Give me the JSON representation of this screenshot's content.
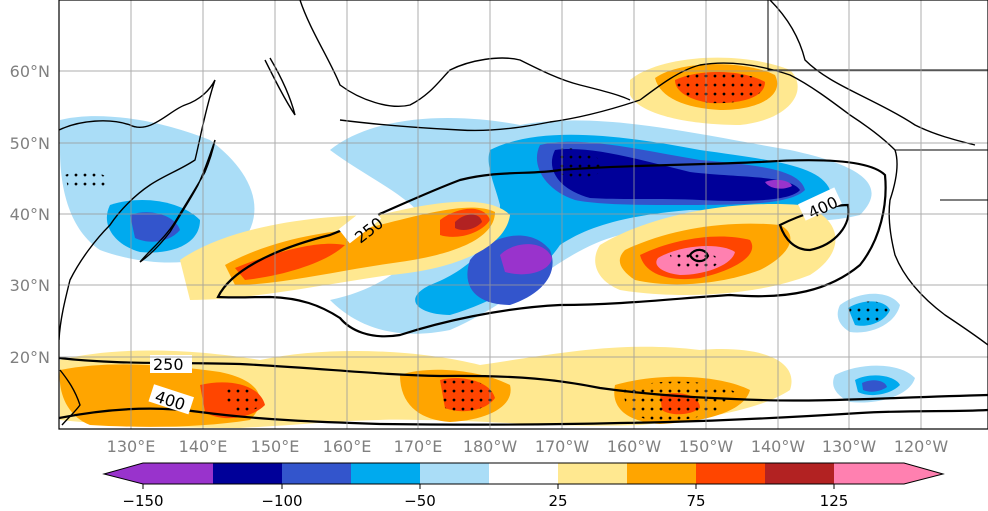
{
  "map": {
    "longitude_labels": [
      "130°E",
      "140°E",
      "150°E",
      "160°E",
      "170°E",
      "180°W",
      "170°W",
      "160°W",
      "150°W",
      "140°W",
      "130°W",
      "120°W"
    ],
    "latitude_labels": [
      "60°N",
      "50°N",
      "40°N",
      "30°N",
      "20°N"
    ],
    "contour_labels": [
      "250",
      "400",
      "250",
      "400"
    ],
    "grid": true
  },
  "colorbar": {
    "tick_labels": [
      "−150",
      "−100",
      "−50",
      "25",
      "75",
      "125"
    ],
    "colors": [
      "#9933cc",
      "#000099",
      "#3355cc",
      "#00aaee",
      "#aaddf7",
      "#ffffff",
      "#ffe890",
      "#ffa500",
      "#ff4500",
      "#b22222",
      "#ff80b0"
    ],
    "extend": "both"
  },
  "styles": {
    "land_outline": "#000000",
    "grid_color": "#999999",
    "contour_color": "#000000"
  }
}
